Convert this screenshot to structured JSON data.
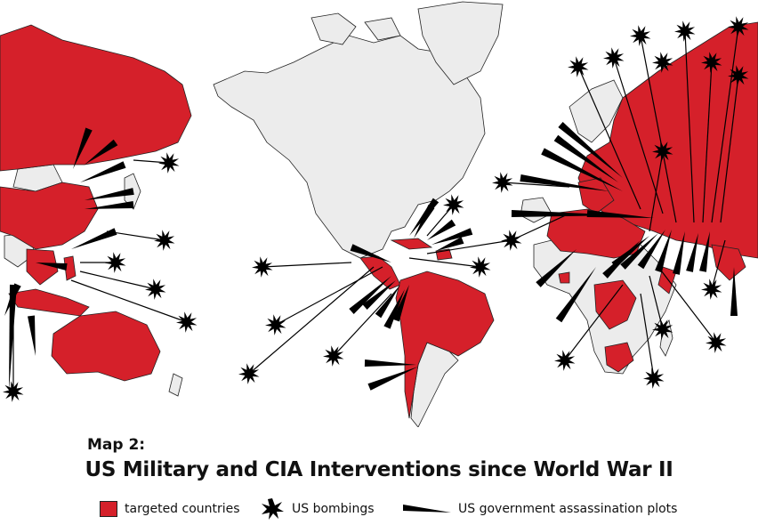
{
  "map": {
    "subtitle": "Map 2:",
    "title": "US Military and CIA Interventions since World War II",
    "legend": {
      "targeted": "targeted countries",
      "bombings": "US bombings",
      "plots": "US government assassination plots"
    },
    "colors": {
      "ocean": "#ffffff",
      "land": "#ececec",
      "targeted": "#d5202a",
      "border": "#222222",
      "marker": "#000000"
    }
  }
}
